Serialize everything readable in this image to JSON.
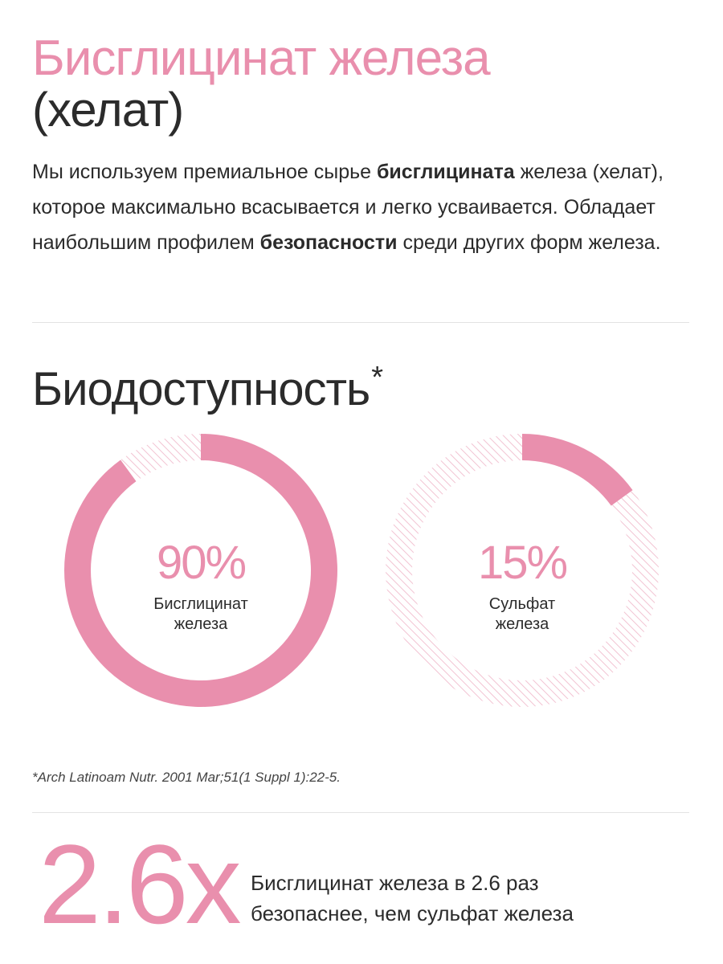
{
  "header": {
    "title_line1": "Бисглицинат железа",
    "title_line2": "(хелат)"
  },
  "intro": {
    "p1": "Мы используем премиальное сырье ",
    "b1": "бисглицината",
    "p2": " железа (хелат), которое максимально всасывается и легко усваивается. Обладает наибольшим профилем ",
    "b2": "безопасности",
    "p3": " среди других форм железа."
  },
  "section": {
    "title": "Биодоступность",
    "asterisk": "*"
  },
  "chart_data": {
    "type": "pie",
    "title": "Биодоступность*",
    "charts": [
      {
        "value": 90,
        "label": "90%",
        "caption_line1": "Бисглицинат",
        "caption_line2": "железа"
      },
      {
        "value": 15,
        "label": "15%",
        "caption_line1": "Сульфат",
        "caption_line2": "железа"
      }
    ],
    "colors": {
      "filled": "#e98fad",
      "remainder_hatch": "#f2c3d2"
    },
    "footnote": "*Arch Latinoam Nutr. 2001 Mar;51(1 Suppl 1):22-5."
  },
  "safety": {
    "big_number": "2.6x",
    "caption_line1": "Бисглицинат железа в 2.6 раз",
    "caption_line2": "безопаснее, чем сульфат железа"
  }
}
